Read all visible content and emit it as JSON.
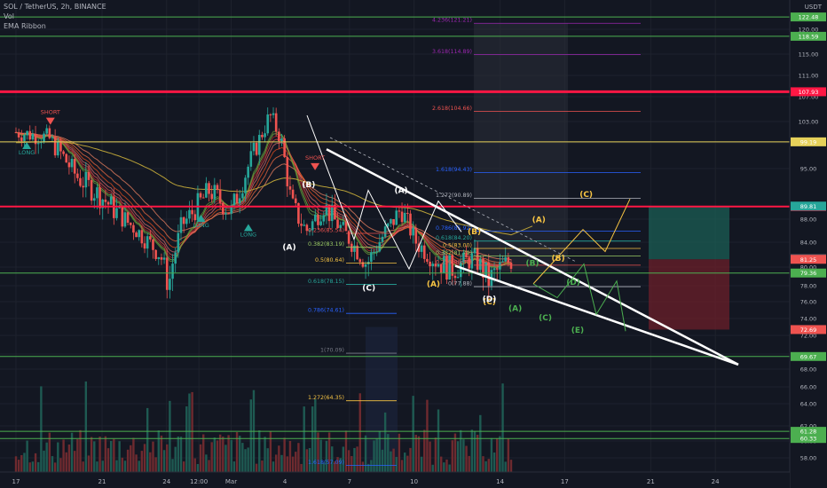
{
  "header": {
    "title": "SOL / TetherUS, 2h, BINANCE",
    "vol_label": "Vol",
    "ema_label": "EMA Ribbon",
    "unit": "USDT"
  },
  "colors": {
    "background": "#131722",
    "up": "#26a69a",
    "down": "#ef5350",
    "fib_gold": "#f6c343",
    "trendline": "#ffffff",
    "red_line": "#ff1744",
    "green_line": "#4caf50",
    "yellow_line": "#e6d15a",
    "blue_fib": "#2962ff",
    "purple_fib": "#9c27b0"
  },
  "chart_data": {
    "type": "candlestick",
    "ylim": [
      56.5,
      124
    ],
    "y_ticks": [
      58.0,
      60.0,
      62.0,
      64.0,
      66.0,
      68.0,
      70.0,
      72.0,
      74.0,
      76.0,
      78.0,
      80.0,
      84.0,
      88.0,
      95.0,
      99.0,
      103.0,
      107.0,
      111.0,
      115.0,
      120.0
    ],
    "x_ticks": [
      {
        "label": "17",
        "x": 0.0
      },
      {
        "label": "21",
        "x": 4.0
      },
      {
        "label": "24",
        "x": 7.0
      },
      {
        "label": "12:00",
        "x": 8.5
      },
      {
        "label": "Mar",
        "x": 10.0
      },
      {
        "label": "4",
        "x": 12.5
      },
      {
        "label": "7",
        "x": 15.5
      },
      {
        "label": "10",
        "x": 18.5
      },
      {
        "label": "14",
        "x": 22.5
      },
      {
        "label": "17",
        "x": 25.5
      },
      {
        "label": "21",
        "x": 29.5
      },
      {
        "label": "24",
        "x": 32.5
      }
    ],
    "horizontal_levels": [
      {
        "value": 107.93,
        "label": "107.93",
        "color": "#ff1744",
        "width": 3
      },
      {
        "value": 89.75,
        "label": "89.75",
        "color": "#ff1744",
        "width": 2
      },
      {
        "value": 99.19,
        "label": "99.19",
        "color": "#e6d15a",
        "width": 1
      },
      {
        "value": 122.48,
        "label": "122.48",
        "color": "#4caf50",
        "width": 1
      },
      {
        "value": 118.59,
        "label": "118.59",
        "color": "#4caf50",
        "width": 1
      },
      {
        "value": 79.36,
        "label": "79.36",
        "color": "#4caf50",
        "width": 1
      },
      {
        "value": 69.67,
        "label": "69.67",
        "color": "#4caf50",
        "width": 1
      },
      {
        "value": 61.28,
        "label": "61.28",
        "color": "#4caf50",
        "width": 1
      },
      {
        "value": 60.33,
        "label": "60.33",
        "color": "#4caf50",
        "width": 1
      }
    ],
    "price_badges": [
      {
        "value": 89.81,
        "label": "89.81",
        "color": "#26a69a"
      },
      {
        "value": 81.4,
        "label": "81.40",
        "color": "#434651"
      },
      {
        "value": 81.25,
        "label": "81.25",
        "color": "#ef5350"
      },
      {
        "value": 72.69,
        "label": "72.69",
        "color": "#ef5350"
      }
    ],
    "fib_left": [
      {
        "label": "0.236(85.54)",
        "value": 85.54,
        "color": "#ef5350",
        "x0": 13.0,
        "x1": 16.0
      },
      {
        "label": "0.382(83.19)",
        "value": 83.19,
        "color": "#9ccc65",
        "x0": 13.0,
        "x1": 16.0
      },
      {
        "label": "0.5(80.64)",
        "value": 80.64,
        "color": "#f6c343",
        "x0": 13.0,
        "x1": 16.0
      },
      {
        "label": "0.618(78.15)",
        "value": 78.15,
        "color": "#26a69a",
        "x0": 13.0,
        "x1": 16.0
      },
      {
        "label": "0.786(74.61)",
        "value": 74.61,
        "color": "#2962ff",
        "x0": 13.0,
        "x1": 16.0
      },
      {
        "label": "1(70.09)",
        "value": 70.09,
        "color": "#787b86",
        "x0": 13.0,
        "x1": 16.0
      },
      {
        "label": "1.272(64.35)",
        "value": 64.35,
        "color": "#f6c343",
        "x0": 13.0,
        "x1": 16.0
      },
      {
        "label": "1.618(57.09)",
        "value": 57.09,
        "color": "#2962ff",
        "x0": 13.0,
        "x1": 16.0
      }
    ],
    "fib_right": [
      {
        "label": "4.236(121.21)",
        "value": 121.21,
        "color": "#9c27b0"
      },
      {
        "label": "3.618(114.89)",
        "value": 114.89,
        "color": "#9c27b0"
      },
      {
        "label": "2.618(104.66)",
        "value": 104.66,
        "color": "#ef5350"
      },
      {
        "label": "1.618(94.43)",
        "value": 94.43,
        "color": "#2962ff"
      },
      {
        "label": "1.272(90.89)",
        "value": 90.89,
        "color": "#b2b5be"
      },
      {
        "label": "0.786(85.92)",
        "value": 85.92,
        "color": "#2962ff"
      },
      {
        "label": "0.618(84.20)",
        "value": 84.2,
        "color": "#26a69a"
      },
      {
        "label": "0.5(83.00)",
        "value": 83.0,
        "color": "#f6c343"
      },
      {
        "label": "0.382(81.79)",
        "value": 81.79,
        "color": "#9ccc65"
      },
      {
        "label": "0.236(80.30)",
        "value": 80.3,
        "color": "#ef5350"
      },
      {
        "label": "0(77.88)",
        "value": 77.88,
        "color": "#b2b5be"
      }
    ],
    "wave_labels": [
      {
        "text": "(A)",
        "x": 12.7,
        "y": 82.8,
        "color": "#ffffff"
      },
      {
        "text": "(B)",
        "x": 13.6,
        "y": 92.4,
        "color": "#ffffff"
      },
      {
        "text": "(C)",
        "x": 16.4,
        "y": 77.4,
        "color": "#ffffff"
      },
      {
        "text": "(A)",
        "x": 17.9,
        "y": 91.6,
        "color": "#ffffff"
      },
      {
        "text": "(A)",
        "x": 19.4,
        "y": 77.9,
        "color": "#f6c343"
      },
      {
        "text": "(B)",
        "x": 21.3,
        "y": 85.4,
        "color": "#f6c343"
      },
      {
        "text": "(C)",
        "x": 22.0,
        "y": 75.7,
        "color": "#f6c343"
      },
      {
        "text": "(D)",
        "x": 22.0,
        "y": 76.0,
        "color": "#ffffff"
      },
      {
        "text": "(A)",
        "x": 24.3,
        "y": 87.5,
        "color": "#f6c343"
      },
      {
        "text": "(B)",
        "x": 25.2,
        "y": 81.0,
        "color": "#f6c343"
      },
      {
        "text": "(C)",
        "x": 26.5,
        "y": 91.1,
        "color": "#f6c343"
      },
      {
        "text": "(B)",
        "x": 24.0,
        "y": 80.2,
        "color": "#4caf50"
      },
      {
        "text": "(A)",
        "x": 23.2,
        "y": 74.9,
        "color": "#4caf50"
      },
      {
        "text": "(C)",
        "x": 24.6,
        "y": 73.8,
        "color": "#4caf50"
      },
      {
        "text": "(D)",
        "x": 25.9,
        "y": 78.1,
        "color": "#4caf50"
      },
      {
        "text": "(E)",
        "x": 26.1,
        "y": 72.3,
        "color": "#4caf50"
      }
    ],
    "signals": [
      {
        "text": "LONG",
        "x": 0.5,
        "y": 97.2,
        "type": "long"
      },
      {
        "text": "SHORT",
        "x": 1.6,
        "y": 104.2,
        "type": "short"
      },
      {
        "text": "LONG",
        "x": 8.6,
        "y": 86.6,
        "type": "long"
      },
      {
        "text": "LONG",
        "x": 10.8,
        "y": 85.0,
        "type": "long"
      },
      {
        "text": "SHORT",
        "x": 13.9,
        "y": 96.4,
        "type": "short"
      }
    ]
  }
}
